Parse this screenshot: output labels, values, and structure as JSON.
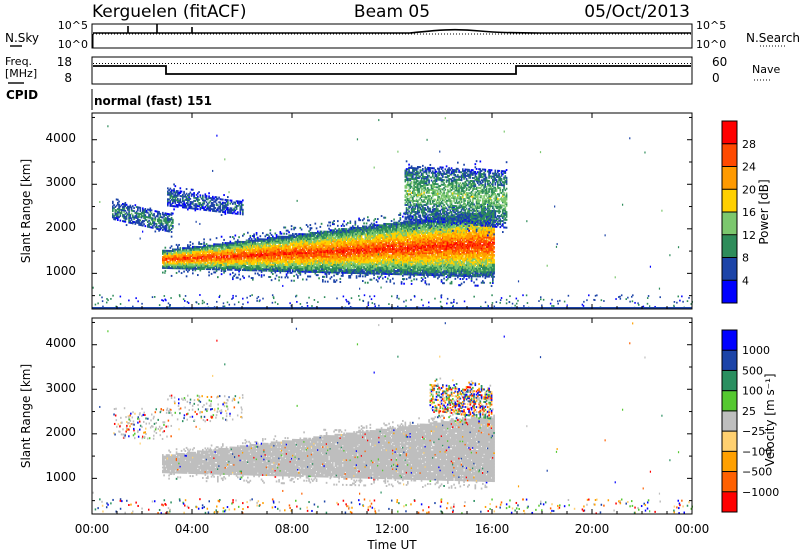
{
  "header": {
    "radar": "Kerguelen (fitACF)",
    "beam": "Beam 05",
    "date": "05/Oct/2013"
  },
  "noise_panel": {
    "left_label": "N.Sky",
    "left_ticks": [
      "10^5",
      "10^0"
    ],
    "right_label": "N.Search",
    "right_ticks": [
      "10^5",
      "10^0"
    ]
  },
  "freq_panel": {
    "left_label_1": "Freq.",
    "left_label_2": "[MHz]",
    "left_ticks": [
      "18",
      "8"
    ],
    "right_label": "Nave",
    "right_ticks": [
      "60",
      "0"
    ]
  },
  "cpid_panel": {
    "label": "CPID",
    "value": "normal (fast) 151"
  },
  "colors": {
    "power_scale": [
      "#0000ff",
      "#1c44a8",
      "#2e8c5a",
      "#7cc76e",
      "#ffd000",
      "#ff9a00",
      "#ff4a00",
      "#ff0000"
    ],
    "velocity_scale": [
      "#ff0000",
      "#ff6000",
      "#ffa000",
      "#ffd070",
      "#bebebe",
      "#55c830",
      "#2a8f60",
      "#1c44a8",
      "#0000ff"
    ],
    "ground_scatter": "#bebebe"
  },
  "chart_data": [
    {
      "type": "heatmap",
      "name": "power",
      "ylabel": "Slant Range [km]",
      "yticks": [
        "1000",
        "2000",
        "3000",
        "4000"
      ],
      "ylim": [
        200,
        4600
      ],
      "xlim": [
        "00:00",
        "24:00"
      ],
      "colorbar": {
        "label": "Power [dB]",
        "ticks": [
          "4",
          "8",
          "12",
          "16",
          "20",
          "24",
          "28"
        ],
        "range": [
          0,
          32
        ]
      },
      "echo_regions": [
        {
          "t_start": 2.8,
          "t_end": 16.1,
          "range_min_at_start": 1100,
          "range_max_at_start": 1500,
          "range_min_at_end": 900,
          "range_max_at_end": 2400,
          "power_core": 28,
          "power_edge": 6
        },
        {
          "t_start": 0.8,
          "t_end": 3.2,
          "range_min_at_start": 2200,
          "range_max_at_start": 2600,
          "range_min_at_end": 1900,
          "range_max_at_end": 2300,
          "power_core": 10,
          "power_edge": 5
        },
        {
          "t_start": 3.0,
          "t_end": 6.0,
          "range_min_at_start": 2500,
          "range_max_at_start": 2900,
          "range_min_at_end": 2300,
          "range_max_at_end": 2600,
          "power_core": 8,
          "power_edge": 4
        },
        {
          "t_start": 12.5,
          "t_end": 16.6,
          "range_min_at_start": 2200,
          "range_max_at_start": 3400,
          "range_min_at_end": 2000,
          "range_max_at_end": 3300,
          "power_core": 14,
          "power_edge": 5
        }
      ]
    },
    {
      "type": "heatmap",
      "name": "velocity",
      "ylabel": "Slant Range [km]",
      "yticks": [
        "1000",
        "2000",
        "3000",
        "4000"
      ],
      "ylim": [
        200,
        4600
      ],
      "xlabel": "Time UT",
      "xticks": [
        "00:00",
        "04:00",
        "08:00",
        "12:00",
        "16:00",
        "20:00",
        "00:00"
      ],
      "xlim": [
        "00:00",
        "24:00"
      ],
      "colorbar": {
        "label": "Velocity [m s⁻¹]",
        "ticks": [
          "1000",
          "500",
          "100",
          "25",
          "−25",
          "−100",
          "−500",
          "−1000"
        ]
      },
      "echo_regions": [
        {
          "t_start": 2.8,
          "t_end": 16.1,
          "range_min_at_start": 1100,
          "range_max_at_start": 1500,
          "range_min_at_end": 900,
          "range_max_at_end": 2400,
          "velocity": "ground scatter"
        },
        {
          "t_start": 13.5,
          "t_end": 16.0,
          "range_min_at_start": 2500,
          "range_max_at_start": 3100,
          "range_min_at_end": 2300,
          "range_max_at_end": 3000,
          "velocity": "mixed"
        }
      ]
    }
  ]
}
